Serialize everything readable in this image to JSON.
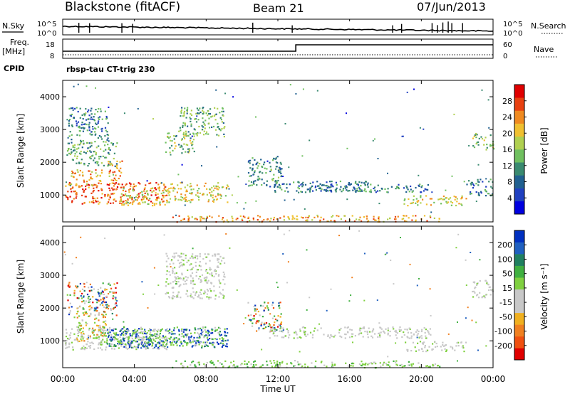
{
  "header": {
    "station": "Blackstone (fitACF)",
    "beam": "Beam 21",
    "date": "07/Jun/2013"
  },
  "side_labels": {
    "nsky": "N.Sky",
    "nsearch": "N.Search",
    "freq": "Freq.",
    "freq_unit": "[MHz]",
    "nave": "Nave",
    "cpid": "CPID",
    "cpid_value": "rbsp-tau CT-trig 230"
  },
  "noise_panel": {
    "left_ticks": [
      "10^5",
      "10^0"
    ],
    "right_ticks": [
      "10^5",
      "10^0"
    ]
  },
  "freq_panel": {
    "left_ticks": [
      "18",
      "8"
    ],
    "right_ticks": [
      "60",
      "0"
    ],
    "freq_change_time": "13:00"
  },
  "time_axis": {
    "label": "Time UT",
    "ticks": [
      "00:00",
      "04:00",
      "08:00",
      "12:00",
      "16:00",
      "20:00",
      "00:00"
    ]
  },
  "chart_data": [
    {
      "type": "heatmap",
      "name": "power",
      "ylabel": "Slant Range [km]",
      "yticks": [
        "1000",
        "2000",
        "3000",
        "4000"
      ],
      "ylim": [
        180,
        4500
      ],
      "xlim_hours": [
        0,
        24
      ],
      "colorbar": {
        "label": "Power [dB]",
        "ticks": [
          "4",
          "8",
          "12",
          "16",
          "20",
          "24",
          "28"
        ],
        "colors": [
          "#0000e0",
          "#2040c0",
          "#206090",
          "#3a8a70",
          "#70c060",
          "#b0d050",
          "#f0c030",
          "#f08a20",
          "#e84010",
          "#e00000"
        ]
      },
      "regions": [
        {
          "t0": 0.1,
          "t1": 5.8,
          "r0": 750,
          "r1": 1400,
          "level": 0.82
        },
        {
          "t0": 0.4,
          "t1": 2.2,
          "r0": 1300,
          "r1": 1800,
          "level": 0.68
        },
        {
          "t0": 2.5,
          "t1": 3.3,
          "r0": 1300,
          "r1": 2100,
          "level": 0.72
        },
        {
          "t0": 3.2,
          "t1": 6.0,
          "r0": 700,
          "r1": 1250,
          "level": 0.6
        },
        {
          "t0": 6.0,
          "t1": 9.2,
          "r0": 800,
          "r1": 1400,
          "level": 0.6
        },
        {
          "t0": 0.2,
          "t1": 3.0,
          "r0": 1900,
          "r1": 2700,
          "level": 0.42
        },
        {
          "t0": 5.7,
          "t1": 7.3,
          "r0": 2300,
          "r1": 3000,
          "level": 0.45
        },
        {
          "t0": 6.5,
          "t1": 9.0,
          "r0": 2800,
          "r1": 3700,
          "level": 0.42
        },
        {
          "t0": 0.3,
          "t1": 2.5,
          "r0": 2700,
          "r1": 3700,
          "level": 0.3
        },
        {
          "t0": 10.3,
          "t1": 12.2,
          "r0": 1300,
          "r1": 2200,
          "level": 0.35
        },
        {
          "t0": 11.5,
          "t1": 17.0,
          "r0": 1100,
          "r1": 1450,
          "level": 0.3
        },
        {
          "t0": 13.5,
          "t1": 20.5,
          "r0": 1100,
          "r1": 1350,
          "level": 0.3
        },
        {
          "t0": 19.0,
          "t1": 22.5,
          "r0": 700,
          "r1": 1000,
          "level": 0.6
        },
        {
          "t0": 22.8,
          "t1": 24.0,
          "r0": 2400,
          "r1": 2900,
          "level": 0.5
        },
        {
          "t0": 22.5,
          "t1": 24.0,
          "r0": 1000,
          "r1": 1500,
          "level": 0.3
        },
        {
          "t0": 6.0,
          "t1": 21.0,
          "r0": 200,
          "r1": 400,
          "level": 0.72
        }
      ]
    },
    {
      "type": "heatmap",
      "name": "velocity",
      "ylabel": "Slant Range [km]",
      "yticks": [
        "1000",
        "2000",
        "3000",
        "4000"
      ],
      "ylim": [
        180,
        4500
      ],
      "xlim_hours": [
        0,
        24
      ],
      "colorbar": {
        "label": "Velocity [m s⁻¹]",
        "ticks": [
          "200",
          "100",
          "50",
          "15",
          "-15",
          "-50",
          "-100",
          "-200"
        ],
        "colors": [
          "#0030c0",
          "#2060c0",
          "#208060",
          "#40b040",
          "#80d040",
          "#c8c8c8",
          "#c8c8c8",
          "#f0b020",
          "#f08020",
          "#f05010",
          "#e00000"
        ]
      },
      "regions": [
        {
          "t0": 0.1,
          "t1": 5.8,
          "r0": 750,
          "r1": 1400,
          "kind": "gray"
        },
        {
          "t0": 0.6,
          "t1": 2.4,
          "r0": 1000,
          "r1": 1900,
          "kind": "orange"
        },
        {
          "t0": 2.4,
          "t1": 9.2,
          "r0": 800,
          "r1": 1400,
          "kind": "blue"
        },
        {
          "t0": 2.0,
          "t1": 9.0,
          "r0": 850,
          "r1": 1450,
          "kind": "green"
        },
        {
          "t0": 0.2,
          "t1": 3.0,
          "r0": 1800,
          "r1": 2800,
          "kind": "mixed"
        },
        {
          "t0": 5.7,
          "t1": 9.0,
          "r0": 2300,
          "r1": 3700,
          "kind": "gray"
        },
        {
          "t0": 10.3,
          "t1": 12.2,
          "r0": 1300,
          "r1": 2200,
          "kind": "mixed"
        },
        {
          "t0": 11.5,
          "t1": 20.5,
          "r0": 1100,
          "r1": 1450,
          "kind": "gray"
        },
        {
          "t0": 19.0,
          "t1": 22.5,
          "r0": 700,
          "r1": 1000,
          "kind": "gray"
        },
        {
          "t0": 22.8,
          "t1": 24.0,
          "r0": 2300,
          "r1": 2900,
          "kind": "gray"
        },
        {
          "t0": 6.0,
          "t1": 21.0,
          "r0": 200,
          "r1": 420,
          "kind": "green"
        }
      ]
    }
  ]
}
